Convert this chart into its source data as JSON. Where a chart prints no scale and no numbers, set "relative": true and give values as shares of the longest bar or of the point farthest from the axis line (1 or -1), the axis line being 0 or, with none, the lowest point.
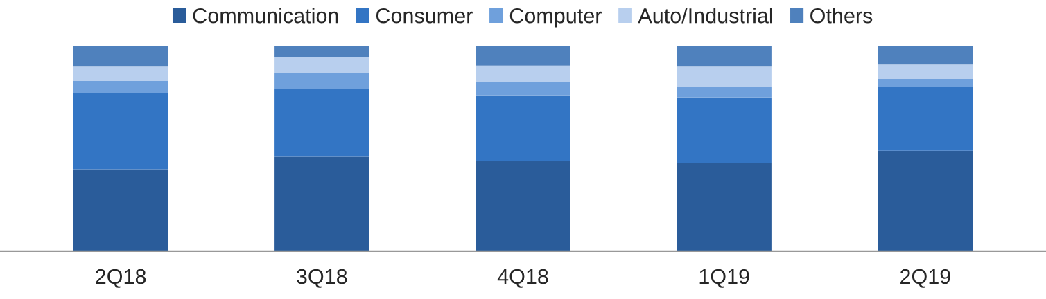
{
  "chart_data": {
    "type": "bar",
    "stacked": true,
    "relative": true,
    "legend": "top",
    "grid": false,
    "categories": [
      "2Q18",
      "3Q18",
      "4Q18",
      "1Q19",
      "2Q19"
    ],
    "series": [
      {
        "name": "Communication",
        "color": "#2a5c9a",
        "values": [
          0.4,
          0.46,
          0.44,
          0.43,
          0.49
        ]
      },
      {
        "name": "Consumer",
        "color": "#3375c4",
        "values": [
          0.37,
          0.33,
          0.32,
          0.32,
          0.31
        ]
      },
      {
        "name": "Computer",
        "color": "#6fa0dc",
        "values": [
          0.06,
          0.08,
          0.065,
          0.05,
          0.04
        ]
      },
      {
        "name": "Auto/Industrial",
        "color": "#b8cfee",
        "values": [
          0.07,
          0.075,
          0.08,
          0.1,
          0.07
        ]
      },
      {
        "name": "Others",
        "color": "#4f81bd",
        "values": [
          0.1,
          0.055,
          0.095,
          0.1,
          0.09
        ]
      }
    ]
  }
}
